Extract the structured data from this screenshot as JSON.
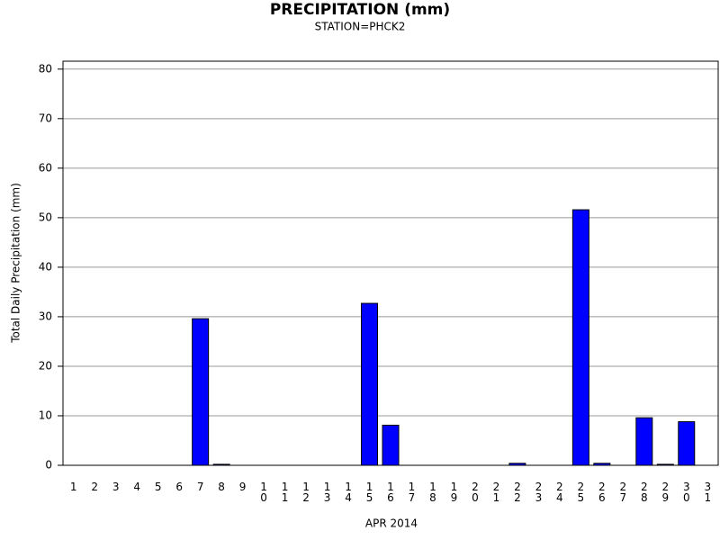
{
  "chart_data": {
    "type": "bar",
    "title": "PRECIPITATION (mm)",
    "subtitle": "STATION=PHCK2",
    "x_label": "APR 2014",
    "y_label": "Total Daily Precipitation (mm)",
    "categories": [
      "1",
      "2",
      "3",
      "4",
      "5",
      "6",
      "7",
      "8",
      "9",
      "10",
      "11",
      "12",
      "13",
      "14",
      "15",
      "16",
      "17",
      "18",
      "19",
      "20",
      "21",
      "22",
      "23",
      "24",
      "25",
      "26",
      "27",
      "28",
      "29",
      "30",
      "31"
    ],
    "values": [
      0,
      0,
      0,
      0,
      0,
      0,
      29.6,
      0.2,
      0,
      0,
      0,
      0,
      0,
      0,
      32.7,
      8.1,
      0,
      0,
      0,
      0,
      0,
      0.4,
      0,
      0,
      51.6,
      0.4,
      0,
      9.6,
      0.2,
      8.8,
      null
    ],
    "color": "#0000ff",
    "ylim": [
      0,
      81.6
    ],
    "yticks": [
      0,
      10,
      20,
      30,
      40,
      50,
      60,
      70,
      80
    ],
    "grid": true
  }
}
